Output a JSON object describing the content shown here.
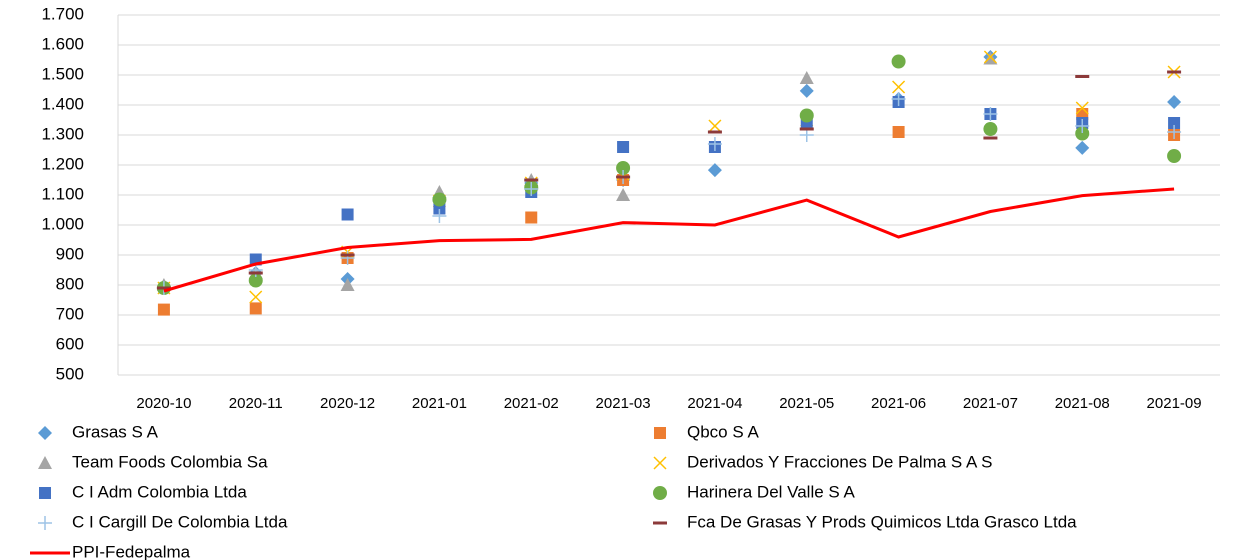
{
  "chart_data": {
    "type": "scatter",
    "categories": [
      "2020-10",
      "2020-11",
      "2020-12",
      "2021-01",
      "2021-02",
      "2021-03",
      "2021-04",
      "2021-05",
      "2021-06",
      "2021-07",
      "2021-08",
      "2021-09"
    ],
    "ylim": [
      500,
      1700
    ],
    "yticks": [
      500,
      600,
      700,
      800,
      900,
      {
        "value": 1000,
        "label": "1.000"
      },
      {
        "value": 1100,
        "label": "1.100"
      },
      {
        "value": 1200,
        "label": "1.200"
      },
      {
        "value": 1300,
        "label": "1.300"
      },
      {
        "value": 1400,
        "label": "1.400"
      },
      {
        "value": 1500,
        "label": "1.500"
      },
      {
        "value": 1600,
        "label": "1.600"
      },
      {
        "value": 1700,
        "label": "1.700"
      }
    ],
    "grid": true,
    "series": [
      {
        "name": "Grasas S A",
        "color": "#5b9bd5",
        "marker": "diamond",
        "values": [
          790,
          840,
          820,
          1080,
          1140,
          1150,
          1183,
          1447,
          1420,
          1560,
          1257,
          1410
        ]
      },
      {
        "name": "Qbco S A",
        "color": "#ed7d31",
        "marker": "square",
        "values": [
          718,
          722,
          890,
          null,
          1025,
          1150,
          null,
          null,
          1310,
          null,
          1370,
          1300
        ]
      },
      {
        "name": "Team Foods Colombia Sa",
        "color": "#a5a5a5",
        "marker": "triangle",
        "values": [
          800,
          840,
          800,
          1110,
          1150,
          1100,
          null,
          1490,
          null,
          1555,
          null,
          null
        ]
      },
      {
        "name": "Derivados Y Fracciones De Palma S A S",
        "color": "#ffc000",
        "marker": "x",
        "values": [
          790,
          760,
          910,
          1080,
          1140,
          1170,
          1330,
          1350,
          1460,
          1560,
          1390,
          1510
        ]
      },
      {
        "name": "C I Adm Colombia Ltda",
        "color": "#4472c4",
        "marker": "square",
        "values": [
          null,
          885,
          1035,
          1055,
          1110,
          1260,
          1260,
          1340,
          1410,
          1370,
          1340,
          1340
        ]
      },
      {
        "name": "Harinera Del Valle S A",
        "color": "#70ad47",
        "marker": "circle",
        "values": [
          790,
          815,
          null,
          1085,
          1125,
          1190,
          null,
          1365,
          1545,
          1320,
          1305,
          1230
        ]
      },
      {
        "name": "C I Cargill De Colombia Ltda",
        "color": "#9dc3e6",
        "marker": "plus",
        "values": [
          790,
          850,
          890,
          1030,
          1120,
          1160,
          1270,
          1300,
          1420,
          1370,
          1330,
          1310
        ]
      },
      {
        "name": "Fca De Grasas Y Prods Quimicos Ltda Grasco Ltda",
        "color": "#8c3a3a",
        "marker": "dash",
        "values": [
          790,
          840,
          900,
          null,
          1150,
          1160,
          1310,
          1320,
          null,
          1290,
          1495,
          1510
        ]
      },
      {
        "name": "PPI-Fedepalma",
        "color": "#ff0000",
        "type": "line",
        "values": [
          780,
          870,
          925,
          948,
          952,
          1008,
          1000,
          1083,
          960,
          1045,
          1098,
          1120
        ]
      }
    ]
  }
}
